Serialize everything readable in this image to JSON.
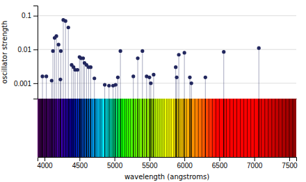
{
  "chart_data": [
    {
      "type": "stem",
      "ylabel": "oscillator strength",
      "log": "y",
      "x": [
        3970,
        4026,
        4102,
        4120,
        4144,
        4169,
        4200,
        4227,
        4233,
        4268,
        4300,
        4340,
        4388,
        4415,
        4438,
        4471,
        4500,
        4522,
        4552,
        4571,
        4600,
        4630,
        4660,
        4713,
        4861,
        4922,
        4980,
        5016,
        5048,
        5085,
        5270,
        5333,
        5400,
        5460,
        5500,
        5520,
        5560,
        5876,
        5890,
        5920,
        6000,
        6078,
        6100,
        6300,
        6563,
        7065
      ],
      "values": [
        0.0016,
        0.0016,
        0.0012,
        0.009,
        0.022,
        0.025,
        0.014,
        0.0013,
        0.009,
        0.075,
        0.07,
        0.045,
        0.0035,
        0.003,
        0.0025,
        0.0025,
        0.006,
        0.0055,
        0.0055,
        0.004,
        0.0035,
        0.003,
        0.003,
        0.0014,
        0.0009,
        0.00085,
        0.00085,
        0.0009,
        0.0015,
        0.009,
        0.0016,
        0.0055,
        0.009,
        0.0016,
        0.0015,
        0.001,
        0.0018,
        0.003,
        0.0015,
        0.007,
        0.008,
        0.0015,
        0.001,
        0.0015,
        0.0085,
        0.011
      ],
      "color": "#22275e",
      "marker": "circle",
      "xlim": [
        3900,
        7600
      ],
      "ylim": [
        0.00035,
        0.2
      ],
      "yticks": [
        0.001,
        0.01,
        0.1
      ],
      "grid": true,
      "tick_labels": "y"
    },
    {
      "type": "spectrum",
      "xlabel": "wavelength (angstroms)",
      "x": [
        3910,
        3920,
        3930,
        3935,
        3945,
        3955,
        3960,
        3968,
        3970,
        3980,
        3990,
        4000,
        4005,
        4010,
        4020,
        4026,
        4035,
        4045,
        4055,
        4065,
        4072,
        4078,
        4085,
        4092,
        4102,
        4110,
        4120,
        4130,
        4144,
        4155,
        4169,
        4180,
        4200,
        4215,
        4227,
        4233,
        4250,
        4268,
        4280,
        4300,
        4315,
        4325,
        4340,
        4352,
        4360,
        4370,
        4388,
        4400,
        4415,
        4438,
        4450,
        4471,
        4490,
        4500,
        4510,
        4522,
        4535,
        4552,
        4571,
        4590,
        4600,
        4615,
        4630,
        4650,
        4660,
        4680,
        4713,
        4730,
        4750,
        4780,
        4800,
        4820,
        4861,
        4880,
        4900,
        4922,
        4940,
        4960,
        4980,
        5000,
        5016,
        5048,
        5085,
        5110,
        5145,
        5170,
        5200,
        5230,
        5270,
        5300,
        5333,
        5360,
        5400,
        5430,
        5460,
        5500,
        5520,
        5540,
        5560,
        5590,
        5620,
        5650,
        5680,
        5710,
        5750,
        5780,
        5810,
        5850,
        5876,
        5890,
        5920,
        5950,
        5980,
        6000,
        6030,
        6078,
        6100,
        6150,
        6200,
        6250,
        6300,
        6350,
        6400,
        6450,
        6500,
        6563,
        6600,
        6650,
        6700,
        6750,
        6800,
        6850,
        6900,
        6950,
        7000,
        7065,
        7100,
        7150,
        7200,
        7250,
        7300,
        7350,
        7400,
        7450,
        7500,
        7550
      ],
      "xlim": [
        3900,
        7600
      ],
      "xticks": [
        4000,
        4500,
        5000,
        5500,
        6000,
        6500,
        7000,
        7500
      ],
      "tick_labels": "x"
    }
  ]
}
